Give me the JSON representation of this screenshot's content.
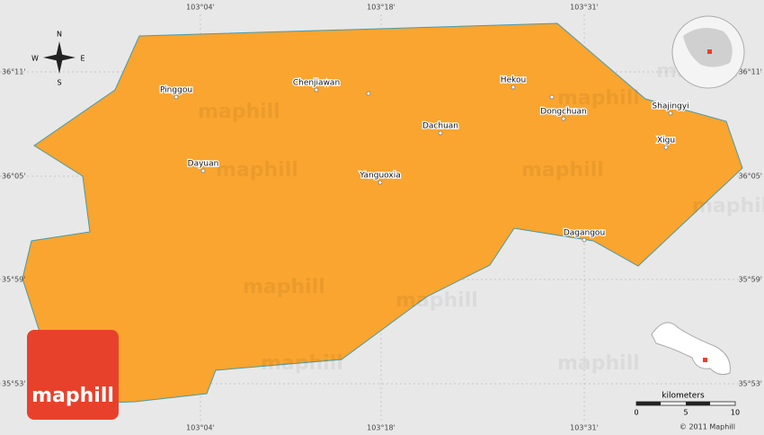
{
  "coordinates": {
    "longitudes": [
      "103°04'",
      "103°18'",
      "103°31'"
    ],
    "latitudes": [
      "36°11'",
      "36°05'",
      "35°59'",
      "35°53'"
    ]
  },
  "places": [
    "Pinggou",
    "Chenjiawan",
    "Hekou",
    "Dongchuan",
    "Shajingyi",
    "Dachuan",
    "Xigu",
    "Dayuan",
    "Yanguoxia",
    "Dagangou"
  ],
  "compass": {
    "north": "N",
    "east": "E",
    "south": "S",
    "west": "W"
  },
  "scale": {
    "title": "kilometers",
    "ticks": [
      0,
      5,
      10
    ]
  },
  "copyright": "© 2011 Maphill",
  "logo": "maphill",
  "watermark": "maphill"
}
